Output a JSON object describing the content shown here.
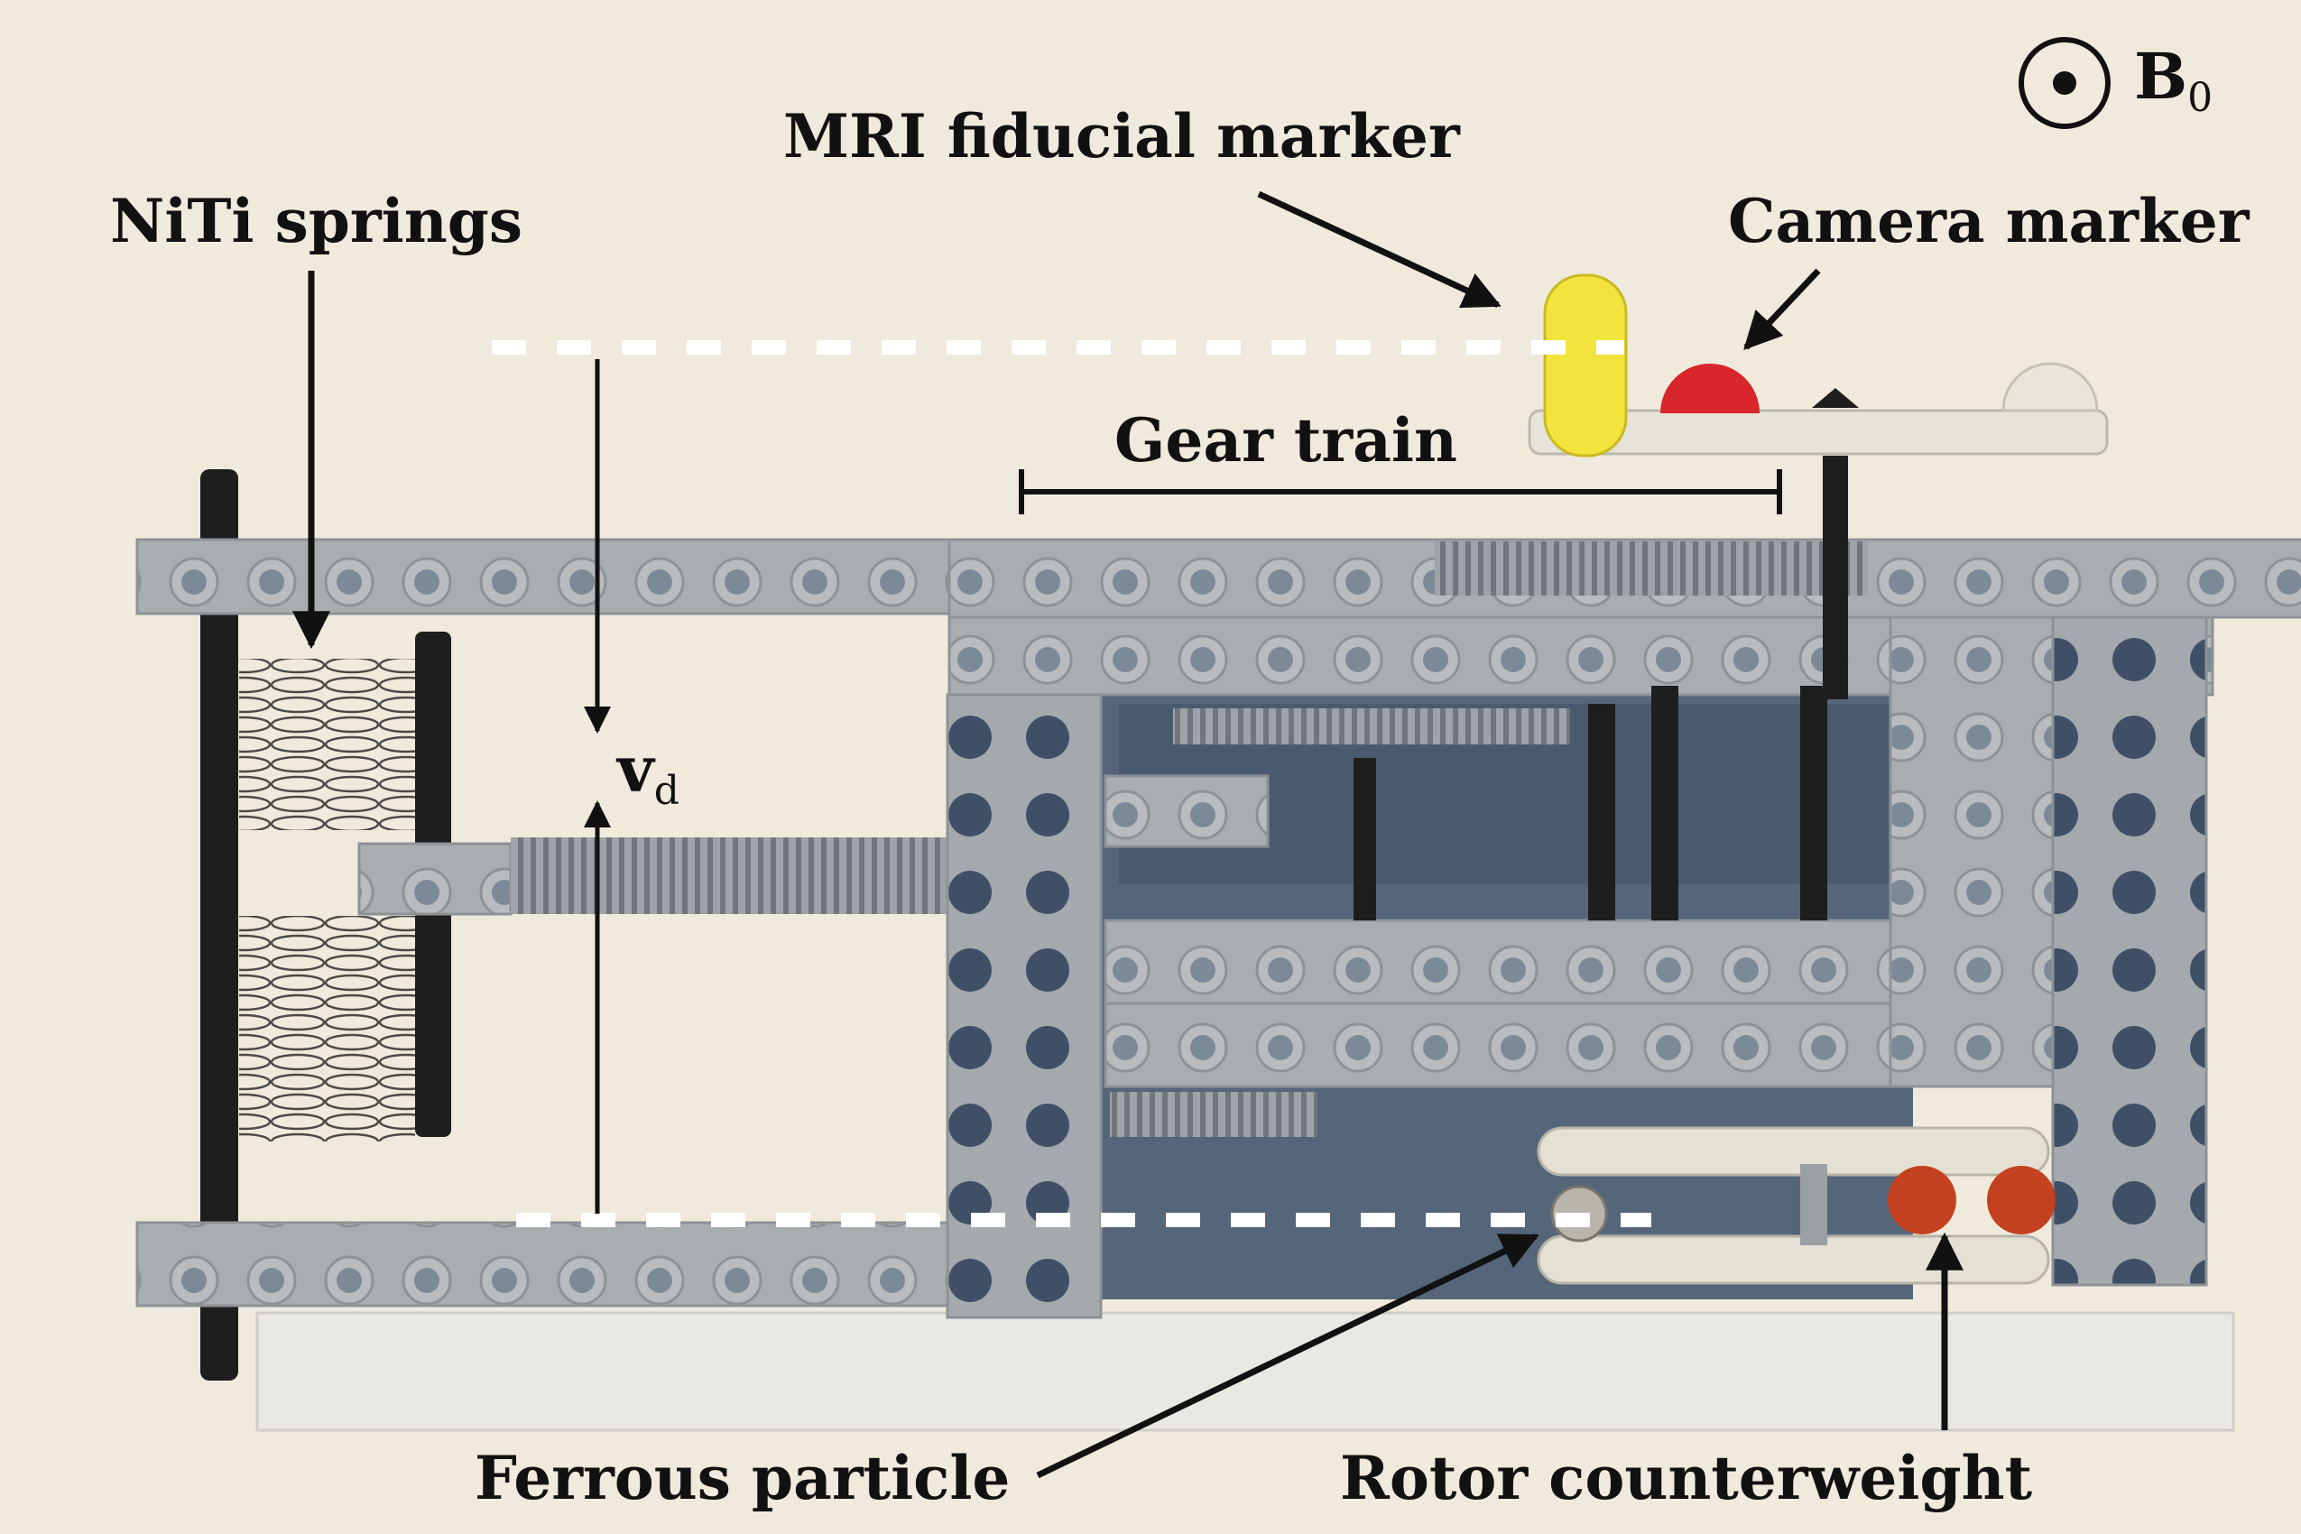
{
  "figure": {
    "labels": {
      "mri_marker": "MRI fiducial marker",
      "camera_marker": "Camera marker",
      "niti_springs": "NiTi springs",
      "gear_train": "Gear train",
      "ferrous_particle": "Ferrous particle",
      "rotor_counterweight": "Rotor counterweight"
    },
    "field": {
      "symbol": "B",
      "subscript": "0"
    },
    "displacement": {
      "symbol": "v",
      "subscript": "d"
    }
  },
  "colors": {
    "background": "#efeadc",
    "lego_gray": "#a8adb0",
    "lego_dark": "#5c6a78",
    "base_plate": "#e9e8e2",
    "marker_yellow": "#f2e43c",
    "marker_red": "#d8262a",
    "ink": "#111111"
  }
}
